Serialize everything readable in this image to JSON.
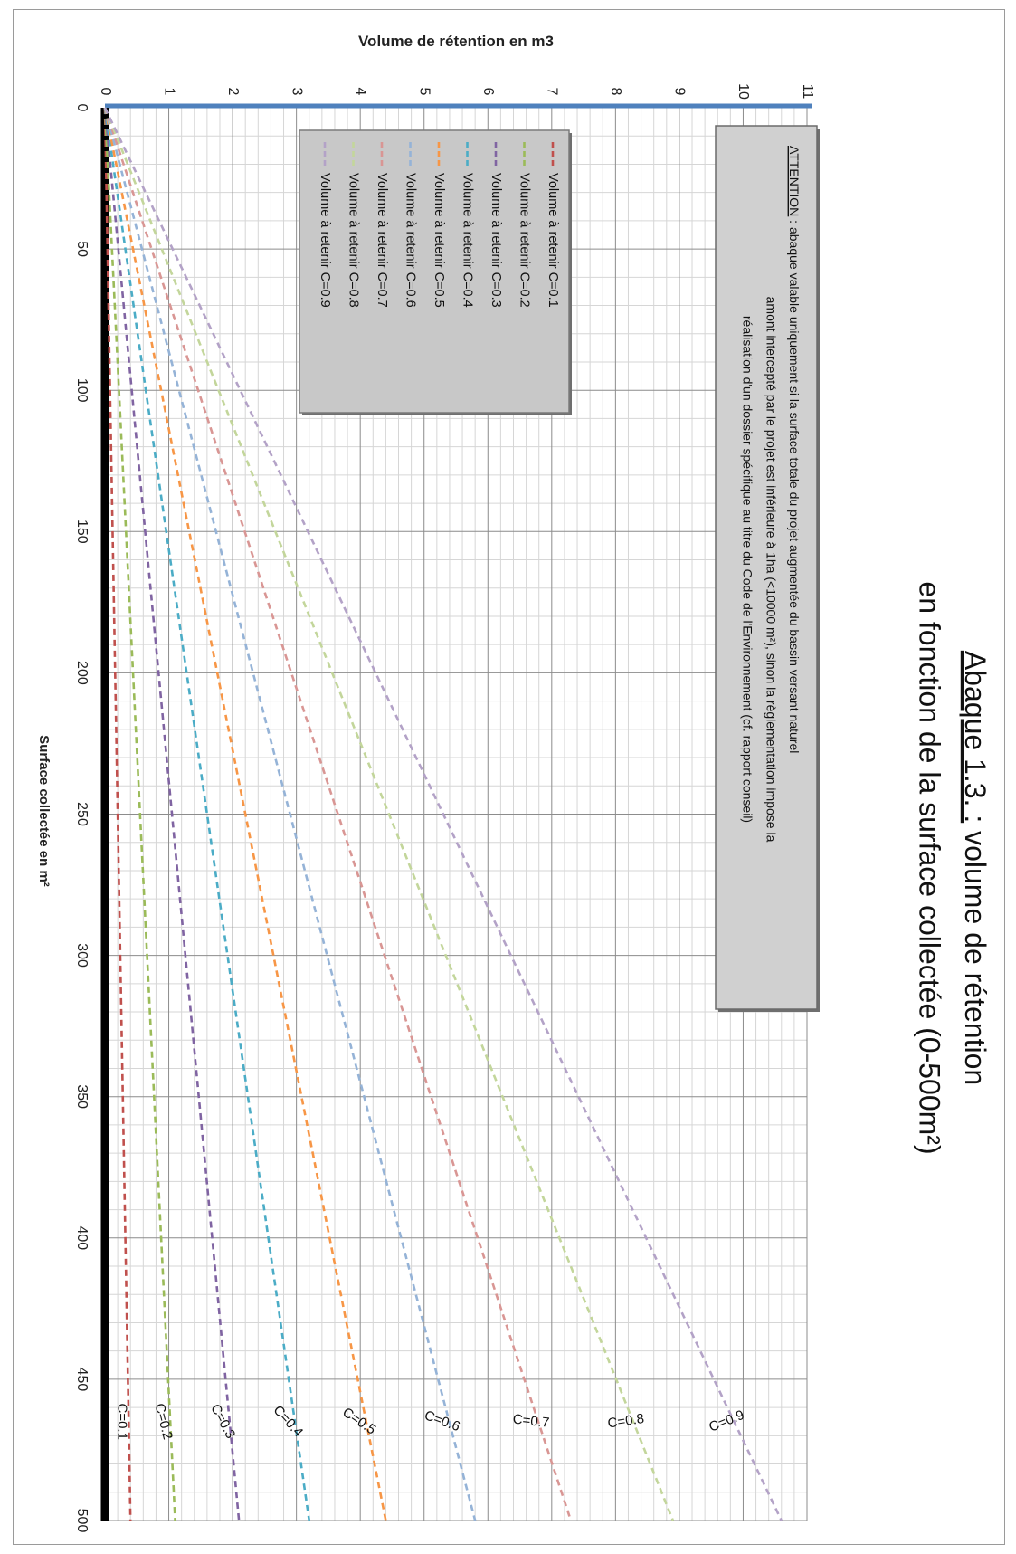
{
  "title": {
    "prefix": "Abaque 1.3. :",
    "rest": "volume de rétention",
    "line2": "en fonction de la surface collectée (0-500m²)"
  },
  "chart_data": {
    "type": "line",
    "orientation": "rotated 90° clockwise",
    "xlabel": "Surface collectée en m²",
    "ylabel": "Volume de rétention en m3",
    "xlim": [
      0,
      500
    ],
    "ylim": [
      0,
      11
    ],
    "x_ticks": [
      "0",
      "50",
      "100",
      "150",
      "200",
      "250",
      "300",
      "350",
      "400",
      "450",
      "500"
    ],
    "y_ticks": [
      "0",
      "1",
      "2",
      "3",
      "4",
      "5",
      "6",
      "7",
      "8",
      "9",
      "10",
      "11"
    ],
    "grid": true,
    "legend_position": "upper area, overlapping plot",
    "series": [
      {
        "name": "Volume à retenir C=0.1",
        "label": "C=0.1",
        "color": "#c0504d",
        "x": [
          0,
          500
        ],
        "values": [
          0,
          0.4
        ]
      },
      {
        "name": "Volume à retenir C=0.2",
        "label": "C=0.2",
        "color": "#9bbb59",
        "x": [
          0,
          500
        ],
        "values": [
          0,
          1.1
        ]
      },
      {
        "name": "Volume à retenir C=0.3",
        "label": "C=0.3",
        "color": "#8064a2",
        "x": [
          0,
          500
        ],
        "values": [
          0,
          2.1
        ]
      },
      {
        "name": "Volume à retenir C=0.4",
        "label": "C=0.4",
        "color": "#4bacc6",
        "x": [
          0,
          500
        ],
        "values": [
          0,
          3.2
        ]
      },
      {
        "name": "Volume à retenir C=0.5",
        "label": "C=0.5",
        "color": "#f79646",
        "x": [
          0,
          500
        ],
        "values": [
          0,
          4.4
        ]
      },
      {
        "name": "Volume à retenir C=0.6",
        "label": "C=0.6",
        "color": "#95b3d7",
        "x": [
          0,
          500
        ],
        "values": [
          0,
          5.8
        ]
      },
      {
        "name": "Volume à retenir C=0.7",
        "label": "C=0.7",
        "color": "#d99694",
        "x": [
          0,
          500
        ],
        "values": [
          0,
          7.3
        ]
      },
      {
        "name": "Volume à retenir C=0.8",
        "label": "C=0.8",
        "color": "#c3d69b",
        "x": [
          0,
          500
        ],
        "values": [
          0,
          8.9
        ]
      },
      {
        "name": "Volume à retenir C=0.9",
        "label": "C=0.9",
        "color": "#b3a2c7",
        "x": [
          0,
          500
        ],
        "values": [
          0,
          10.6
        ]
      }
    ],
    "annotation": {
      "heading": "ATTENTION",
      "sep": " : ",
      "lines": [
        "abaque valable uniquement si la surface totale du projet augmentée du bassin versant naturel",
        "amont intercepté par le projet est inférieure à 1ha (<10000 m²), sinon la règlementation impose la",
        "réalisation d'un dossier spécifique au titre du Code de l'Environnement (cf. rapport conseil)"
      ]
    }
  }
}
